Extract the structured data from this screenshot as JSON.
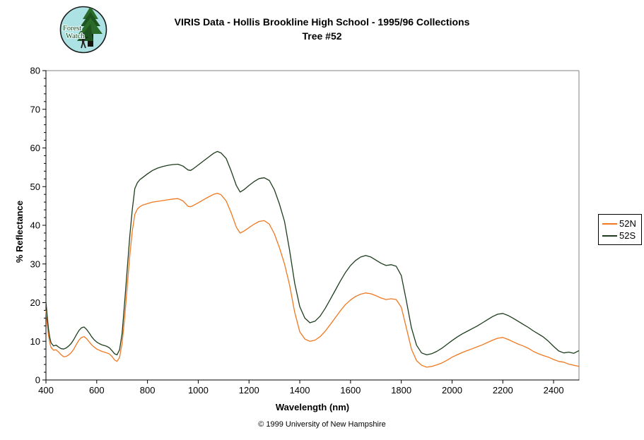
{
  "page": {
    "title_line1": "VIRIS Data - Hollis Brookline High School - 1995/96 Collections",
    "title_line2": "Tree #52",
    "footer": "© 1999 University of New Hampshire"
  },
  "logo": {
    "line1": "Forest",
    "line2": "Watch"
  },
  "colors": {
    "axis": "#000000",
    "frame": "#808080",
    "background": "#ffffff",
    "series_52N": "#f07820",
    "series_52S": "#1d3d1d"
  },
  "chart_data": {
    "type": "line",
    "title": "VIRIS Data - Hollis Brookline High School - 1995/96 Collections — Tree #52",
    "xlabel": "Wavelength (nm)",
    "ylabel": "% Reflectance",
    "xlim": [
      400,
      2500
    ],
    "ylim": [
      0,
      80
    ],
    "x_ticks": [
      400,
      600,
      800,
      1000,
      1200,
      1400,
      1600,
      1800,
      2000,
      2200,
      2400
    ],
    "y_ticks": [
      0,
      10,
      20,
      30,
      40,
      50,
      60,
      70,
      80
    ],
    "y_minor_step": 2,
    "grid": false,
    "legend_position": "right",
    "x": [
      400,
      405,
      410,
      415,
      420,
      430,
      440,
      450,
      460,
      470,
      480,
      490,
      500,
      510,
      520,
      530,
      540,
      550,
      560,
      570,
      580,
      590,
      600,
      610,
      620,
      630,
      640,
      650,
      660,
      670,
      680,
      690,
      700,
      710,
      720,
      730,
      740,
      750,
      760,
      770,
      780,
      800,
      820,
      840,
      860,
      880,
      900,
      920,
      940,
      950,
      960,
      970,
      980,
      1000,
      1020,
      1040,
      1060,
      1075,
      1090,
      1110,
      1130,
      1150,
      1165,
      1180,
      1200,
      1220,
      1240,
      1260,
      1280,
      1300,
      1320,
      1340,
      1360,
      1380,
      1400,
      1420,
      1440,
      1460,
      1480,
      1500,
      1520,
      1540,
      1560,
      1580,
      1600,
      1620,
      1640,
      1660,
      1680,
      1700,
      1720,
      1740,
      1760,
      1780,
      1800,
      1820,
      1840,
      1860,
      1880,
      1900,
      1920,
      1940,
      1960,
      1980,
      2000,
      2020,
      2040,
      2060,
      2080,
      2100,
      2120,
      2140,
      2160,
      2180,
      2200,
      2220,
      2240,
      2260,
      2280,
      2300,
      2320,
      2340,
      2360,
      2380,
      2400,
      2420,
      2440,
      2460,
      2480,
      2500
    ],
    "series": [
      {
        "name": "52N",
        "color": "#f07820",
        "values": [
          18.0,
          14.5,
          11.5,
          9.6,
          8.4,
          7.7,
          7.8,
          7.2,
          6.5,
          6.0,
          6.1,
          6.5,
          7.1,
          8.0,
          9.2,
          10.3,
          11.0,
          11.2,
          10.7,
          9.9,
          9.1,
          8.5,
          8.0,
          7.7,
          7.4,
          7.2,
          7.0,
          6.7,
          6.1,
          5.2,
          4.8,
          5.8,
          9.5,
          16.0,
          24.0,
          32.0,
          38.5,
          42.8,
          44.2,
          44.8,
          45.2,
          45.6,
          46.0,
          46.2,
          46.4,
          46.6,
          46.8,
          46.9,
          46.3,
          45.6,
          44.9,
          44.8,
          45.1,
          45.8,
          46.6,
          47.3,
          48.0,
          48.3,
          47.9,
          46.3,
          43.2,
          39.5,
          38.0,
          38.5,
          39.4,
          40.3,
          41.0,
          41.2,
          40.3,
          37.8,
          34.2,
          30.0,
          24.5,
          17.5,
          12.5,
          10.6,
          10.0,
          10.3,
          11.2,
          12.6,
          14.3,
          16.1,
          17.9,
          19.5,
          20.7,
          21.6,
          22.2,
          22.5,
          22.3,
          21.8,
          21.2,
          20.8,
          21.0,
          20.8,
          18.8,
          13.5,
          8.0,
          5.0,
          3.8,
          3.3,
          3.5,
          3.9,
          4.4,
          5.1,
          5.9,
          6.5,
          7.1,
          7.6,
          8.1,
          8.6,
          9.1,
          9.7,
          10.3,
          10.8,
          11.0,
          10.5,
          9.9,
          9.3,
          8.8,
          8.2,
          7.4,
          6.8,
          6.3,
          5.9,
          5.3,
          4.8,
          4.6,
          4.1,
          3.8,
          3.5
        ]
      },
      {
        "name": "52S",
        "color": "#1d3d1d",
        "values": [
          20.2,
          16.5,
          13.2,
          11.0,
          9.6,
          8.8,
          9.0,
          8.5,
          8.1,
          8.0,
          8.3,
          8.8,
          9.5,
          10.5,
          11.7,
          12.8,
          13.5,
          13.7,
          13.1,
          12.2,
          11.2,
          10.4,
          9.8,
          9.4,
          9.1,
          8.9,
          8.7,
          8.3,
          7.6,
          6.8,
          6.5,
          7.8,
          12.0,
          20.0,
          28.5,
          37.0,
          44.0,
          49.5,
          51.0,
          51.8,
          52.3,
          53.3,
          54.2,
          54.8,
          55.2,
          55.5,
          55.7,
          55.8,
          55.3,
          54.8,
          54.3,
          54.2,
          54.6,
          55.6,
          56.6,
          57.6,
          58.6,
          59.1,
          58.7,
          57.3,
          54.0,
          50.3,
          48.6,
          49.2,
          50.3,
          51.3,
          52.1,
          52.3,
          51.6,
          49.2,
          45.5,
          41.0,
          33.5,
          25.0,
          19.0,
          16.0,
          14.8,
          15.2,
          16.5,
          18.5,
          20.8,
          23.2,
          25.6,
          27.8,
          29.6,
          30.9,
          31.8,
          32.2,
          31.8,
          31.0,
          30.2,
          29.6,
          29.8,
          29.4,
          27.0,
          20.5,
          13.5,
          9.0,
          7.0,
          6.5,
          6.8,
          7.4,
          8.2,
          9.2,
          10.2,
          11.1,
          11.9,
          12.6,
          13.3,
          14.0,
          14.8,
          15.6,
          16.4,
          17.0,
          17.2,
          16.7,
          16.0,
          15.2,
          14.4,
          13.6,
          12.7,
          11.9,
          11.1,
          10.0,
          8.7,
          7.5,
          7.0,
          7.2,
          6.9,
          7.6
        ]
      }
    ]
  }
}
